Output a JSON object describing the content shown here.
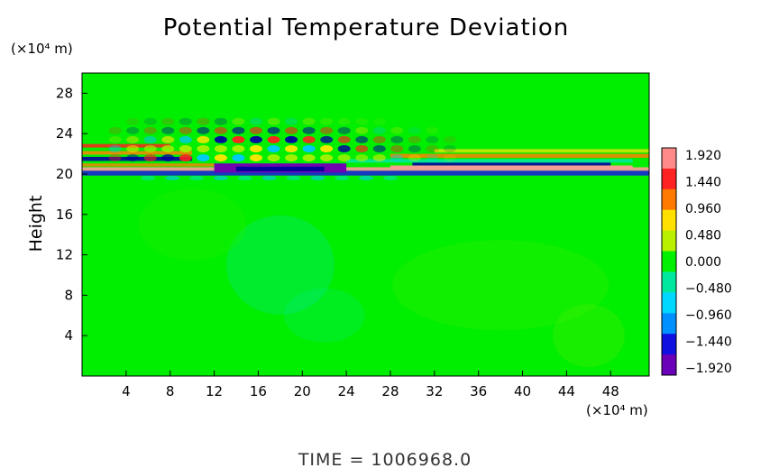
{
  "chart_data": {
    "type": "heatmap",
    "title": "Potential Temperature Deviation",
    "ylabel": "Height",
    "yunit": "(×10⁴ m)",
    "xunit": "(×10⁴ m)",
    "xlim": [
      0,
      51.5
    ],
    "ylim": [
      0,
      30
    ],
    "xticks": [
      "4",
      "8",
      "12",
      "16",
      "20",
      "24",
      "28",
      "32",
      "36",
      "40",
      "44",
      "48"
    ],
    "yticks": [
      "4",
      "8",
      "12",
      "16",
      "20",
      "24",
      "28"
    ],
    "colorbar": {
      "range": [
        -1.92,
        1.92
      ],
      "labels": [
        "1.920",
        "1.440",
        "0.960",
        "0.480",
        "0.000",
        "−0.480",
        "−0.960",
        "−1.440",
        "−1.920"
      ],
      "colors": [
        "#ff8a8a",
        "#ff2222",
        "#ff7a00",
        "#ffe000",
        "#b8f000",
        "#00f000",
        "#00e8a0",
        "#00d8ff",
        "#0090ff",
        "#1010e0",
        "#6a00b8"
      ]
    },
    "background_color": "#00ee00",
    "time_label": "TIME  =  1006968.0"
  }
}
